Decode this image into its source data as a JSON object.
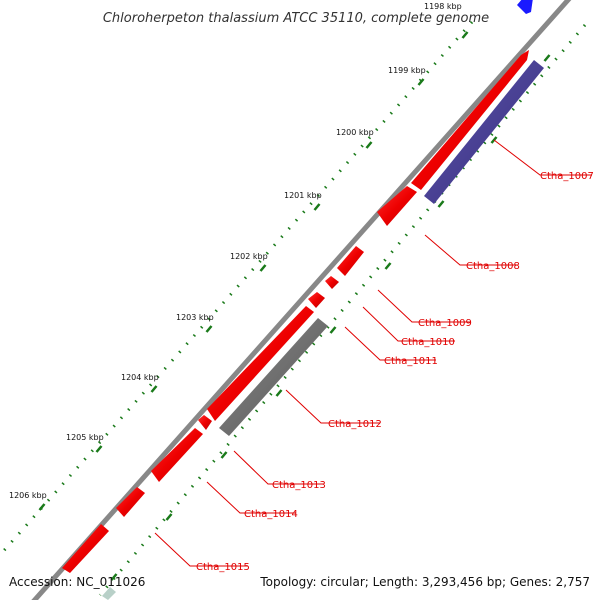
{
  "title": "Chloroherpeton thalassium ATCC 35110, complete genome",
  "accession": "Accession: NC_011026",
  "topology": "Topology: circular; Length: 3,293,456 bp; Genes: 2,757",
  "colors": {
    "forward_gene": "#ff0000",
    "reverse_gene": "#4a3f9a",
    "pseudo_gene": "#707070",
    "other_gene": "#1a1aff",
    "backbone": "#888888",
    "ticks": "#1a7a1a",
    "label_line": "#e00000"
  },
  "kbp_ticks": [
    "1198 kbp",
    "1199 kbp",
    "1200 kbp",
    "1201 kbp",
    "1202 kbp",
    "1203 kbp",
    "1204 kbp",
    "1205 kbp",
    "1206 kbp"
  ],
  "genes": [
    {
      "label": "Ctha_1007",
      "strand": "reverse",
      "type": "cds"
    },
    {
      "label": "Ctha_1008",
      "strand": "forward",
      "type": "cds"
    },
    {
      "label": "Ctha_1009",
      "strand": "forward",
      "type": "cds"
    },
    {
      "label": "Ctha_1010",
      "strand": "forward",
      "type": "cds"
    },
    {
      "label": "Ctha_1011",
      "strand": "forward",
      "type": "cds"
    },
    {
      "label": "Ctha_1012",
      "strand": "reverse",
      "type": "pseudo"
    },
    {
      "label": "Ctha_1013",
      "strand": "forward",
      "type": "cds"
    },
    {
      "label": "Ctha_1014",
      "strand": "forward",
      "type": "cds"
    },
    {
      "label": "Ctha_1015",
      "strand": "forward",
      "type": "cds"
    }
  ]
}
